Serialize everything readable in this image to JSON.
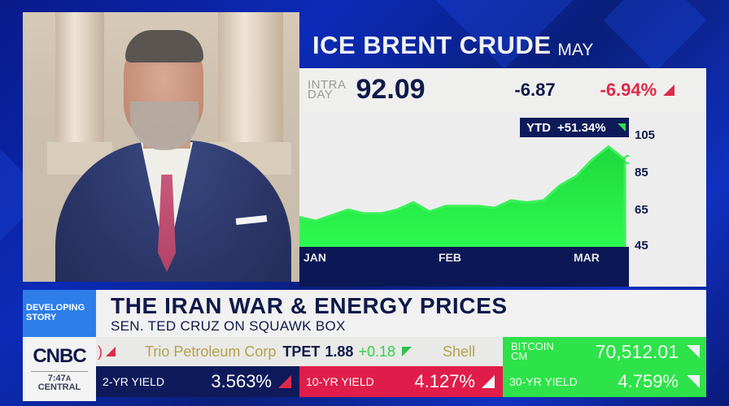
{
  "quote": {
    "instrument": "ICE BRENT CRUDE",
    "contract_month": "MAY",
    "intraday_label_top": "INTRA",
    "intraday_label_bottom": "DAY",
    "price": "92.09",
    "change": "-6.87",
    "change_pct": "-6.94%",
    "ytd_label": "YTD",
    "ytd_value": "+51.34%"
  },
  "chart_data": {
    "type": "area",
    "title": "ICE BRENT CRUDE MAY",
    "x_ticks": [
      "JAN",
      "FEB",
      "MAR"
    ],
    "y_ticks": [
      45,
      65,
      85,
      105
    ],
    "ylim": [
      45,
      105
    ],
    "series": [
      {
        "name": "Brent Crude",
        "x": [
          "Jan-01",
          "Jan-05",
          "Jan-09",
          "Jan-13",
          "Jan-17",
          "Jan-21",
          "Jan-25",
          "Jan-29",
          "Feb-02",
          "Feb-06",
          "Feb-10",
          "Feb-14",
          "Feb-18",
          "Feb-22",
          "Feb-26",
          "Mar-02",
          "Mar-04",
          "Mar-06",
          "Mar-08",
          "Mar-10",
          "Mar-11"
        ],
        "values": [
          61,
          59,
          62,
          65,
          63,
          63,
          65,
          69,
          64,
          67,
          67,
          67,
          66,
          70,
          69,
          70,
          78,
          83,
          92,
          99,
          92.09
        ]
      }
    ],
    "colors": {
      "fill": "#22ee44",
      "line": "#2fe24a",
      "x_band": "#0b1855"
    },
    "grid": false
  },
  "lower_third": {
    "tag_line1": "DEVELOPING",
    "tag_line2": "STORY",
    "headline": "THE IRAN WAR & ENERGY PRICES",
    "subline": "SEN. TED CRUZ ON SQUAWK BOX"
  },
  "network": {
    "logo": "CNBC",
    "time": "7:47",
    "meridiem": "A",
    "timezone": "CENTRAL"
  },
  "ticker": {
    "leading_fragment": ")",
    "company": "Trio Petroleum Corp",
    "symbol": "TPET",
    "price": "1.88",
    "change": "+0.18",
    "next_company": "Shell"
  },
  "bitcoin": {
    "label_top": "BITCOIN",
    "label_bottom": "CM",
    "value": "70,512.01"
  },
  "yields": [
    {
      "label": "2-YR YIELD",
      "value": "3.563%"
    },
    {
      "label": "10-YR YIELD",
      "value": "4.127%"
    },
    {
      "label": "30-YR YIELD",
      "value": "4.759%"
    }
  ]
}
